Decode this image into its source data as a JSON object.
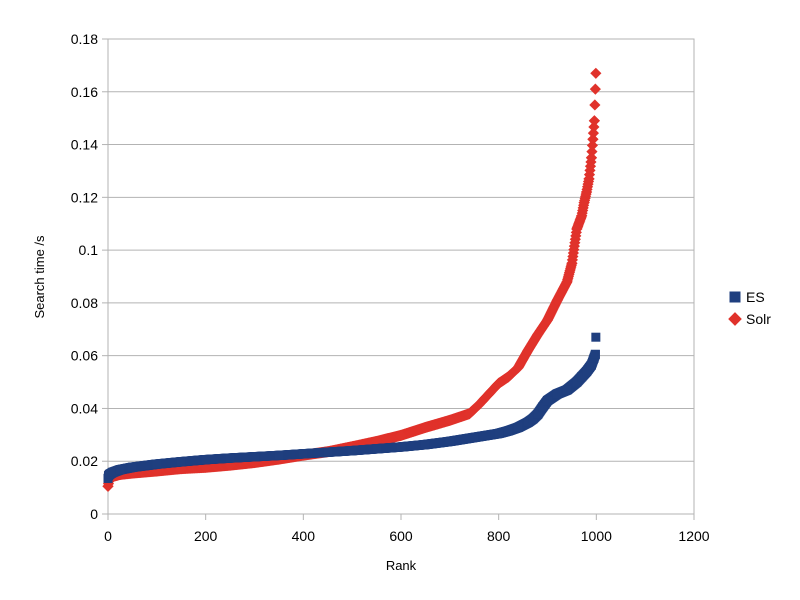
{
  "chart_data": {
    "type": "scatter",
    "title": "",
    "xlabel": "Rank",
    "ylabel": "Search time /s",
    "xlim": [
      0,
      1200
    ],
    "ylim": [
      0,
      0.18
    ],
    "xticks": [
      0,
      200,
      400,
      600,
      800,
      1000,
      1200
    ],
    "yticks": [
      0,
      0.02,
      0.04,
      0.06,
      0.08,
      0.1,
      0.12,
      0.14,
      0.16,
      0.18
    ],
    "xtick_labels": [
      "0",
      "200",
      "400",
      "600",
      "800",
      "1000",
      "1200"
    ],
    "ytick_labels": [
      "0",
      "0.02",
      "0.04",
      "0.06",
      "0.08",
      "0.1",
      "0.12",
      "0.14",
      "0.16",
      "0.18"
    ],
    "grid": "horizontal",
    "legend_position": "right",
    "series": [
      {
        "name": "ES",
        "marker": "square",
        "color": "#1f3f7f",
        "x": [
          0,
          1,
          3,
          10,
          25,
          50,
          100,
          150,
          200,
          250,
          300,
          350,
          400,
          450,
          500,
          550,
          600,
          650,
          700,
          750,
          800,
          820,
          840,
          860,
          870,
          880,
          890,
          900,
          920,
          940,
          960,
          970,
          980,
          990,
          995,
          998,
          999
        ],
        "y": [
          0.0135,
          0.0145,
          0.015,
          0.0158,
          0.0168,
          0.0177,
          0.0189,
          0.0198,
          0.0206,
          0.0212,
          0.0217,
          0.0222,
          0.0228,
          0.0234,
          0.024,
          0.0247,
          0.0254,
          0.0263,
          0.0275,
          0.029,
          0.0305,
          0.0315,
          0.0328,
          0.0347,
          0.036,
          0.0378,
          0.0405,
          0.043,
          0.0455,
          0.047,
          0.05,
          0.052,
          0.054,
          0.0565,
          0.059,
          0.0605,
          0.067
        ]
      },
      {
        "name": "Solr",
        "marker": "diamond",
        "color": "#e0322b",
        "x": [
          0,
          2,
          5,
          10,
          25,
          50,
          100,
          150,
          200,
          250,
          300,
          350,
          400,
          450,
          500,
          550,
          600,
          650,
          700,
          740,
          760,
          800,
          820,
          840,
          860,
          880,
          900,
          920,
          940,
          950,
          960,
          970,
          975,
          980,
          985,
          990,
          993,
          996,
          999
        ],
        "y": [
          0.0105,
          0.0125,
          0.0135,
          0.0142,
          0.015,
          0.0155,
          0.0163,
          0.0172,
          0.0177,
          0.0185,
          0.0195,
          0.0208,
          0.0223,
          0.0236,
          0.0255,
          0.0275,
          0.0298,
          0.0328,
          0.0355,
          0.038,
          0.0415,
          0.0495,
          0.052,
          0.0555,
          0.062,
          0.068,
          0.0735,
          0.081,
          0.088,
          0.095,
          0.108,
          0.113,
          0.118,
          0.122,
          0.127,
          0.135,
          0.142,
          0.149,
          0.167
        ]
      }
    ]
  }
}
